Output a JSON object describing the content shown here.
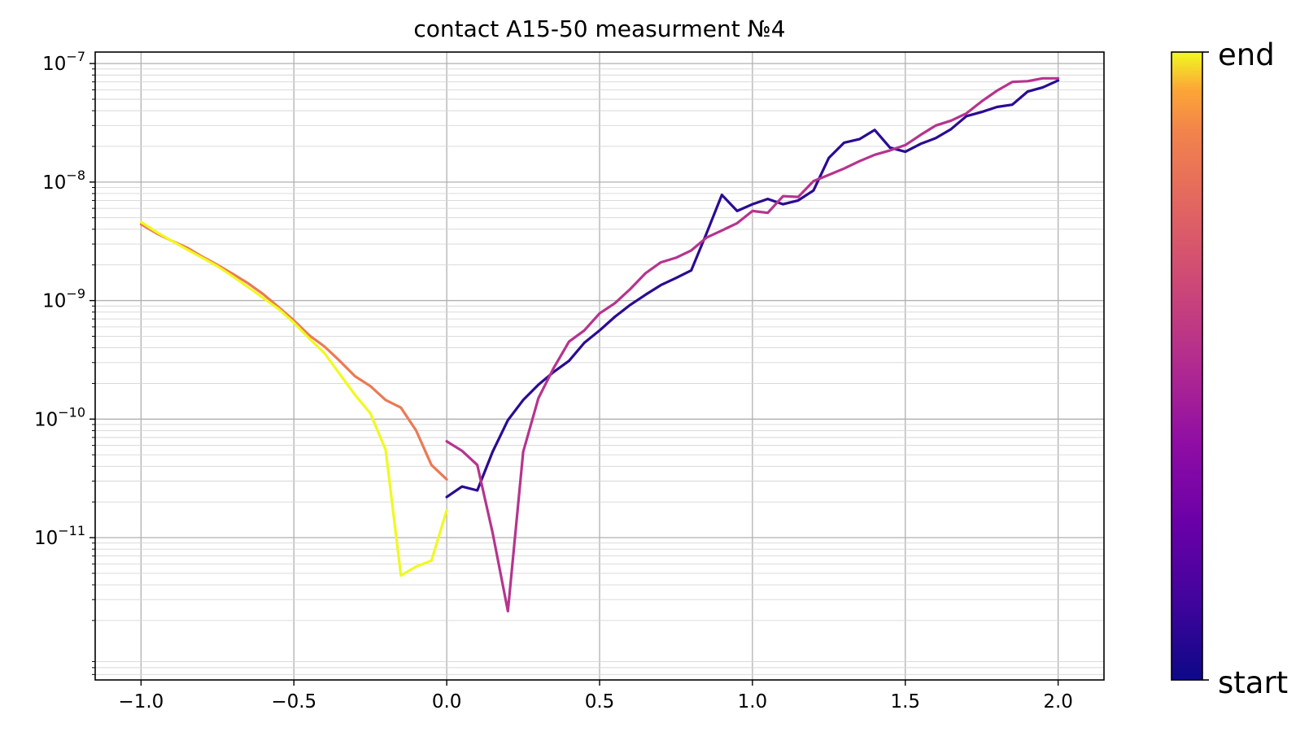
{
  "chart_data": {
    "type": "line",
    "title": "contact A15-50 measurment №4",
    "xlabel": "",
    "ylabel": "",
    "xlim": [
      -1.15,
      2.15
    ],
    "ylim": [
      6.3e-13,
      1.25e-07
    ],
    "yscale": "log",
    "grid": "major and minor on y, major on x",
    "colormap": "plasma",
    "x_ticks": [
      "−1.0",
      "−0.5",
      "0.0",
      "0.5",
      "1.0",
      "1.5",
      "2.0"
    ],
    "y_ticks": [
      {
        "base": "10",
        "exp": "−11"
      },
      {
        "base": "10",
        "exp": "−10"
      },
      {
        "base": "10",
        "exp": "−9"
      },
      {
        "base": "10",
        "exp": "−8"
      },
      {
        "base": "10",
        "exp": "−7"
      }
    ],
    "colorbar": {
      "top_label": "end",
      "bottom_label": "start"
    },
    "series": [
      {
        "segment": 1,
        "color": "#2a0b93",
        "x": [
          0,
          0.05,
          0.1,
          0.15,
          0.2,
          0.25,
          0.3,
          0.35,
          0.4,
          0.45,
          0.5,
          0.55,
          0.6,
          0.65,
          0.7,
          0.75,
          0.8,
          0.85,
          0.9,
          0.95,
          1.0,
          1.05,
          1.1,
          1.15,
          1.2,
          1.25,
          1.3,
          1.35,
          1.4,
          1.45,
          1.5,
          1.55,
          1.6,
          1.65,
          1.7,
          1.75,
          1.8,
          1.85,
          1.9,
          1.95,
          2.0
        ],
        "y": [
          2.2e-11,
          2.7e-11,
          2.5e-11,
          5.3e-11,
          9.8e-11,
          1.45e-10,
          1.95e-10,
          2.5e-10,
          3.1e-10,
          4.4e-10,
          5.6e-10,
          7.3e-10,
          9.2e-10,
          1.12e-09,
          1.35e-09,
          1.55e-09,
          1.8e-09,
          3.7e-09,
          7.8e-09,
          5.7e-09,
          6.5e-09,
          7.2e-09,
          6.5e-09,
          7e-09,
          8.5e-09,
          1.6e-08,
          2.15e-08,
          2.3e-08,
          2.75e-08,
          1.95e-08,
          1.8e-08,
          2.1e-08,
          2.35e-08,
          2.8e-08,
          3.6e-08,
          3.9e-08,
          4.3e-08,
          4.5e-08,
          5.8e-08,
          6.3e-08,
          7.2e-08
        ]
      },
      {
        "segment": 2,
        "color": "#b6348e",
        "x": [
          2.0,
          1.95,
          1.9,
          1.85,
          1.8,
          1.75,
          1.7,
          1.65,
          1.6,
          1.55,
          1.5,
          1.45,
          1.4,
          1.35,
          1.3,
          1.25,
          1.2,
          1.15,
          1.1,
          1.05,
          1.0,
          0.95,
          0.9,
          0.85,
          0.8,
          0.75,
          0.7,
          0.65,
          0.6,
          0.55,
          0.5,
          0.45,
          0.4,
          0.35,
          0.3,
          0.25,
          0.2,
          0.15,
          0.1,
          0.05,
          0.0
        ],
        "y": [
          7.5e-08,
          7.5e-08,
          7.1e-08,
          7e-08,
          5.9e-08,
          4.8e-08,
          3.8e-08,
          3.3e-08,
          3e-08,
          2.5e-08,
          2.05e-08,
          1.85e-08,
          1.7e-08,
          1.5e-08,
          1.3e-08,
          1.15e-08,
          1.02e-08,
          7.5e-09,
          7.6e-09,
          5.5e-09,
          5.7e-09,
          4.5e-09,
          3.9e-09,
          3.4e-09,
          2.65e-09,
          2.3e-09,
          2.1e-09,
          1.7e-09,
          1.25e-09,
          9.5e-10,
          7.8e-10,
          5.6e-10,
          4.5e-10,
          2.7e-10,
          1.5e-10,
          5.3e-11,
          2.4e-12,
          1.1e-11,
          4.1e-11,
          5.4e-11,
          6.5e-11
        ]
      },
      {
        "segment": 3,
        "color": "#ed7953",
        "x": [
          0.0,
          -0.05,
          -0.1,
          -0.15,
          -0.2,
          -0.25,
          -0.3,
          -0.35,
          -0.4,
          -0.45,
          -0.5,
          -0.55,
          -0.6,
          -0.65,
          -0.7,
          -0.75,
          -0.8,
          -0.85,
          -0.9,
          -0.95,
          -1.0
        ],
        "y": [
          3.1e-11,
          4.1e-11,
          8e-11,
          1.25e-10,
          1.45e-10,
          1.9e-10,
          2.3e-10,
          3.1e-10,
          4.1e-10,
          5.1e-10,
          6.8e-10,
          8.8e-10,
          1.13e-09,
          1.4e-09,
          1.68e-09,
          2e-09,
          2.35e-09,
          2.8e-09,
          3.2e-09,
          3.7e-09,
          4.4e-09
        ]
      },
      {
        "segment": 4,
        "color": "#f0f921",
        "x": [
          -1.0,
          -0.95,
          -0.9,
          -0.85,
          -0.8,
          -0.75,
          -0.7,
          -0.65,
          -0.6,
          -0.55,
          -0.5,
          -0.45,
          -0.4,
          -0.35,
          -0.3,
          -0.25,
          -0.2,
          -0.15,
          -0.1,
          -0.05,
          0.0
        ],
        "y": [
          4.6e-09,
          3.8e-09,
          3.2e-09,
          2.7e-09,
          2.3e-09,
          1.95e-09,
          1.6e-09,
          1.3e-09,
          1.05e-09,
          8.5e-10,
          6.5e-10,
          4.8e-10,
          3.6e-10,
          2.4e-10,
          1.6e-10,
          1.12e-10,
          5.5e-11,
          4.8e-12,
          5.7e-12,
          6.4e-12,
          1.7e-11
        ]
      }
    ]
  }
}
